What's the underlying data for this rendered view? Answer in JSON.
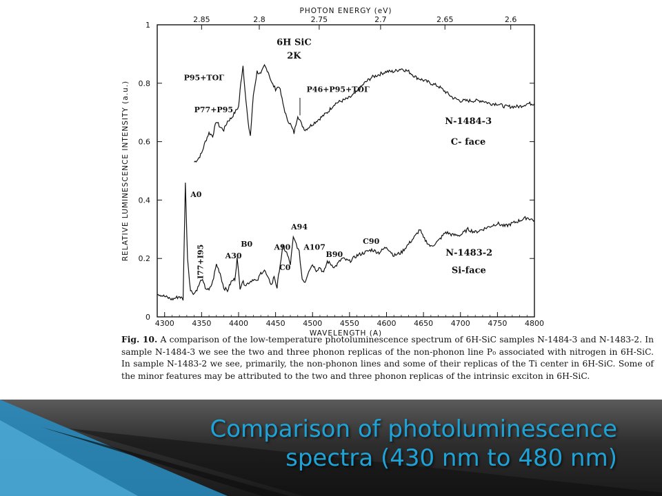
{
  "slide": {
    "title": "Comparison of photoluminescence spectra (430 nm to 480 nm)",
    "colors": {
      "title": "#1fa3d6",
      "footer_dark": "#1a1a1a",
      "footer_light": "#5b5b5b",
      "accent_blue": "#2a8fc4"
    }
  },
  "figure": {
    "caption_label": "Fig. 10.",
    "caption_text": "A comparison of the low-temperature photoluminescence spectrum of 6H-SiC samples N-1484-3 and N-1483-2. In sample N-1484-3 we see the two and three phonon replicas of the non-phonon line P₀ associated with nitrogen in 6H-SiC. In sample N-1483-2 we see, primarily, the non-phonon lines and some of their replicas of the Ti center in 6H-SiC. Some of the minor features may be attributed to the two and three phonon replicas of the intrinsic exciton in 6H-SiC."
  },
  "chart_data": {
    "type": "line",
    "xlabel": "WAVELENGTH (A)",
    "x2label": "PHOTON ENERGY (eV)",
    "ylabel": "RELATIVE LUMINESCENCE INTENSITY (a.u.)",
    "xlim": [
      1290,
      1800
    ],
    "xlim_note": "axis ticks printed as 1300..4800",
    "x_ticks": [
      1300,
      1350,
      1400,
      1450,
      1500,
      1550,
      1600,
      1650,
      1700,
      1750,
      1800
    ],
    "x_tick_labels": [
      "4300",
      "4350",
      "4400",
      "4450",
      "4500",
      "4550",
      "4600",
      "4650",
      "4700",
      "4750",
      "4800"
    ],
    "x2_ticks": [
      {
        "label": "2.85",
        "wavelength": 4350
      },
      {
        "label": "2.8",
        "wavelength": 4428
      },
      {
        "label": "2.75",
        "wavelength": 4509
      },
      {
        "label": "2.7",
        "wavelength": 4592
      },
      {
        "label": "2.65",
        "wavelength": 4679
      },
      {
        "label": "2.6",
        "wavelength": 4768
      }
    ],
    "ylim": [
      0,
      1
    ],
    "y_ticks": [
      0,
      0.2,
      0.4,
      0.6,
      0.8,
      1
    ],
    "y_tick_labels": [
      "0",
      "0.2",
      "0.4",
      "0.6",
      "0.8",
      "1"
    ],
    "annotations": {
      "sample_title": "6H SiC",
      "temperature": "2K",
      "series1_name": "N-1484-3",
      "series1_face": "C- face",
      "series2_name": "N-1483-2",
      "series2_face": "Si-face",
      "p95_to": "P95+TOΓ",
      "p77_p95": "P77+P95",
      "p46_p95_to": "P46+P95+TOΓ",
      "a0": "A0",
      "i77_i95": "I77+I95",
      "a30": "A30",
      "b0": "B0",
      "a90": "A90",
      "c0": "C0",
      "a94": "A94",
      "a107": "A107",
      "b90": "B90",
      "c90": "C90"
    },
    "series": [
      {
        "name": "N-1484-3",
        "wavelength": [
          4340,
          4345,
          4350,
          4355,
          4360,
          4365,
          4370,
          4375,
          4380,
          4385,
          4390,
          4395,
          4400,
          4403,
          4406,
          4410,
          4413,
          4416,
          4420,
          4425,
          4430,
          4435,
          4440,
          4445,
          4450,
          4455,
          4460,
          4465,
          4470,
          4475,
          4480,
          4485,
          4490,
          4500,
          4510,
          4520,
          4530,
          4540,
          4550,
          4560,
          4570,
          4580,
          4590,
          4600,
          4610,
          4620,
          4630,
          4640,
          4650,
          4660,
          4670,
          4680,
          4690,
          4700,
          4710,
          4720,
          4730,
          4740,
          4750,
          4760,
          4770,
          4780,
          4790,
          4800
        ],
        "intensity": [
          0.53,
          0.54,
          0.56,
          0.6,
          0.63,
          0.62,
          0.67,
          0.65,
          0.64,
          0.67,
          0.68,
          0.7,
          0.72,
          0.8,
          0.86,
          0.74,
          0.66,
          0.62,
          0.76,
          0.84,
          0.83,
          0.86,
          0.84,
          0.8,
          0.78,
          0.79,
          0.73,
          0.68,
          0.66,
          0.63,
          0.69,
          0.66,
          0.64,
          0.66,
          0.68,
          0.7,
          0.73,
          0.74,
          0.75,
          0.77,
          0.8,
          0.82,
          0.83,
          0.84,
          0.84,
          0.85,
          0.84,
          0.82,
          0.81,
          0.8,
          0.79,
          0.77,
          0.75,
          0.74,
          0.74,
          0.74,
          0.74,
          0.73,
          0.73,
          0.72,
          0.72,
          0.72,
          0.73,
          0.73
        ]
      },
      {
        "name": "N-1483-2",
        "wavelength": [
          4290,
          4300,
          4310,
          4320,
          4325,
          4328,
          4331,
          4335,
          4340,
          4345,
          4350,
          4355,
          4360,
          4365,
          4370,
          4375,
          4380,
          4385,
          4390,
          4395,
          4398,
          4402,
          4405,
          4410,
          4415,
          4420,
          4425,
          4430,
          4435,
          4440,
          4445,
          4448,
          4452,
          4455,
          4460,
          4465,
          4470,
          4474,
          4478,
          4482,
          4486,
          4490,
          4495,
          4500,
          4505,
          4510,
          4515,
          4520,
          4530,
          4540,
          4550,
          4560,
          4570,
          4580,
          4590,
          4600,
          4610,
          4620,
          4630,
          4640,
          4645,
          4650,
          4660,
          4670,
          4680,
          4690,
          4700,
          4710,
          4720,
          4730,
          4740,
          4750,
          4760,
          4770,
          4780,
          4790,
          4800
        ],
        "intensity": [
          0.08,
          0.07,
          0.06,
          0.07,
          0.06,
          0.46,
          0.2,
          0.09,
          0.08,
          0.1,
          0.13,
          0.1,
          0.09,
          0.12,
          0.18,
          0.15,
          0.1,
          0.09,
          0.12,
          0.13,
          0.2,
          0.1,
          0.12,
          0.11,
          0.12,
          0.13,
          0.12,
          0.15,
          0.16,
          0.13,
          0.11,
          0.14,
          0.1,
          0.16,
          0.24,
          0.22,
          0.18,
          0.27,
          0.25,
          0.22,
          0.13,
          0.12,
          0.16,
          0.18,
          0.16,
          0.17,
          0.15,
          0.19,
          0.17,
          0.2,
          0.19,
          0.21,
          0.22,
          0.23,
          0.22,
          0.24,
          0.21,
          0.22,
          0.25,
          0.28,
          0.3,
          0.27,
          0.24,
          0.26,
          0.29,
          0.28,
          0.28,
          0.3,
          0.29,
          0.3,
          0.31,
          0.32,
          0.31,
          0.32,
          0.33,
          0.34,
          0.33
        ]
      }
    ]
  }
}
